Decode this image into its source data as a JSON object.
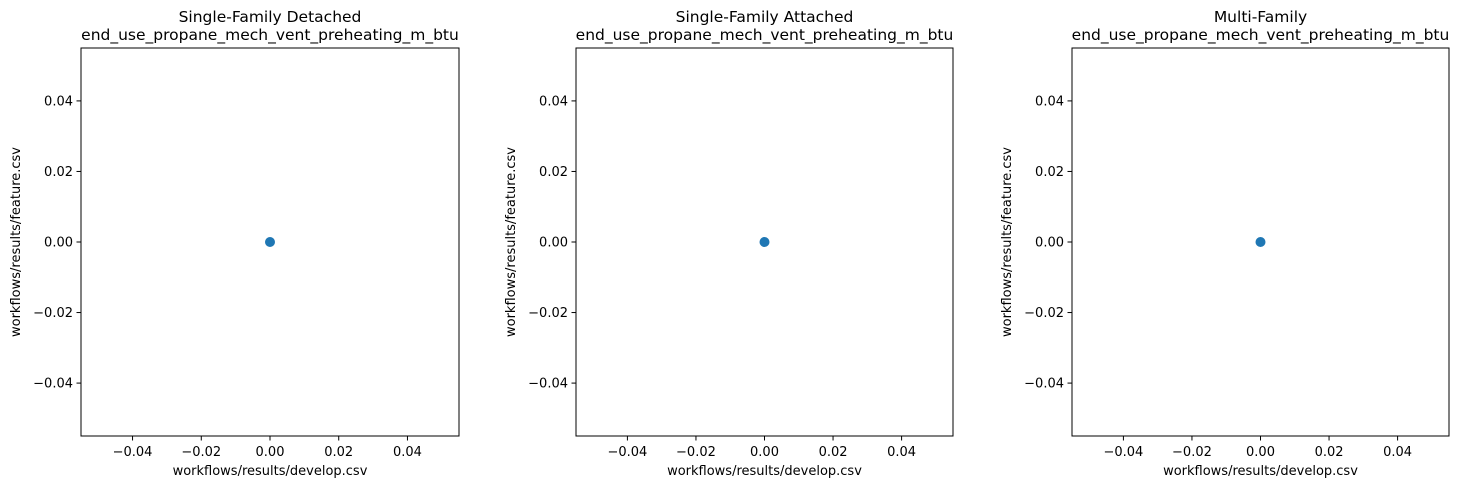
{
  "chart_data": [
    {
      "type": "scatter",
      "title": [
        "Single-Family Detached",
        "end_use_propane_mech_vent_preheating_m_btu"
      ],
      "xlabel": "workflows/results/develop.csv",
      "ylabel": "workflows/results/feature.csv",
      "xlim": [
        -0.055,
        0.055
      ],
      "ylim": [
        -0.055,
        0.055
      ],
      "xticks": [
        -0.04,
        -0.02,
        0.0,
        0.02,
        0.04
      ],
      "xtick_labels": [
        "−0.04",
        "−0.02",
        "0.00",
        "0.02",
        "0.04"
      ],
      "yticks": [
        -0.04,
        -0.02,
        0.0,
        0.02,
        0.04
      ],
      "ytick_labels": [
        "−0.04",
        "−0.02",
        "0.00",
        "0.02",
        "0.04"
      ],
      "grid": false,
      "series": [
        {
          "color": "#1f77b4",
          "x": [
            0.0
          ],
          "y": [
            0.0
          ]
        }
      ]
    },
    {
      "type": "scatter",
      "title": [
        "Single-Family Attached",
        "end_use_propane_mech_vent_preheating_m_btu"
      ],
      "xlabel": "workflows/results/develop.csv",
      "ylabel": "workflows/results/feature.csv",
      "xlim": [
        -0.055,
        0.055
      ],
      "ylim": [
        -0.055,
        0.055
      ],
      "xticks": [
        -0.04,
        -0.02,
        0.0,
        0.02,
        0.04
      ],
      "xtick_labels": [
        "−0.04",
        "−0.02",
        "0.00",
        "0.02",
        "0.04"
      ],
      "yticks": [
        -0.04,
        -0.02,
        0.0,
        0.02,
        0.04
      ],
      "ytick_labels": [
        "−0.04",
        "−0.02",
        "0.00",
        "0.02",
        "0.04"
      ],
      "grid": false,
      "series": [
        {
          "color": "#1f77b4",
          "x": [
            0.0
          ],
          "y": [
            0.0
          ]
        }
      ]
    },
    {
      "type": "scatter",
      "title": [
        "Multi-Family",
        "end_use_propane_mech_vent_preheating_m_btu"
      ],
      "xlabel": "workflows/results/develop.csv",
      "ylabel": "workflows/results/feature.csv",
      "xlim": [
        -0.055,
        0.055
      ],
      "ylim": [
        -0.055,
        0.055
      ],
      "xticks": [
        -0.04,
        -0.02,
        0.0,
        0.02,
        0.04
      ],
      "xtick_labels": [
        "−0.04",
        "−0.02",
        "0.00",
        "0.02",
        "0.04"
      ],
      "yticks": [
        -0.04,
        -0.02,
        0.0,
        0.02,
        0.04
      ],
      "ytick_labels": [
        "−0.04",
        "−0.02",
        "0.00",
        "0.02",
        "0.04"
      ],
      "grid": false,
      "series": [
        {
          "color": "#1f77b4",
          "x": [
            0.0
          ],
          "y": [
            0.0
          ]
        }
      ]
    }
  ]
}
